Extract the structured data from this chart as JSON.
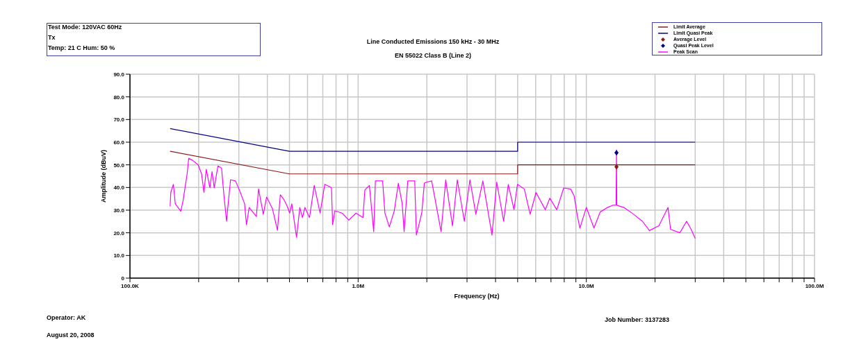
{
  "chart_data": {
    "type": "line",
    "title": "Line Conducted Emissions 150 kHz - 30 MHz",
    "subtitle": "EN 55022 Class B (Line 2)",
    "xlabel": "Frequency (Hz)",
    "ylabel": "Amplitude (dBuV)",
    "annotations": [
      "Test Mode: 120VAC 60Hz",
      "Tx",
      "Temp: 21 C Hum: 50 %",
      "Operator: AK",
      "August 20, 2008",
      "Job Number: 3137283"
    ],
    "log": "x",
    "grid": true,
    "legend": "top right",
    "xlim": [
      100000,
      100000000
    ],
    "ylim": [
      0,
      90
    ],
    "xticks": [
      {
        "value": 100000,
        "label": "100.0K"
      },
      {
        "value": 200000,
        "label": null
      },
      {
        "value": 300000,
        "label": null
      },
      {
        "value": 400000,
        "label": null
      },
      {
        "value": 500000,
        "label": null
      },
      {
        "value": 600000,
        "label": null
      },
      {
        "value": 700000,
        "label": null
      },
      {
        "value": 800000,
        "label": null
      },
      {
        "value": 900000,
        "label": null
      },
      {
        "value": 1000000,
        "label": "1.0M"
      },
      {
        "value": 2000000,
        "label": null
      },
      {
        "value": 3000000,
        "label": null
      },
      {
        "value": 4000000,
        "label": null
      },
      {
        "value": 5000000,
        "label": null
      },
      {
        "value": 6000000,
        "label": null
      },
      {
        "value": 7000000,
        "label": null
      },
      {
        "value": 8000000,
        "label": null
      },
      {
        "value": 9000000,
        "label": null
      },
      {
        "value": 10000000,
        "label": "10.0M"
      },
      {
        "value": 20000000,
        "label": null
      },
      {
        "value": 30000000,
        "label": null
      },
      {
        "value": 40000000,
        "label": null
      },
      {
        "value": 50000000,
        "label": null
      },
      {
        "value": 60000000,
        "label": null
      },
      {
        "value": 70000000,
        "label": null
      },
      {
        "value": 80000000,
        "label": null
      },
      {
        "value": 90000000,
        "label": null
      },
      {
        "value": 100000000,
        "label": "100.0M"
      }
    ],
    "yticks": [
      0,
      {
        "value": 10,
        "label": "10.0"
      },
      {
        "value": 20,
        "label": "20.0"
      },
      {
        "value": 30,
        "label": "30.0"
      },
      {
        "value": 40,
        "label": "40.0"
      },
      {
        "value": 50,
        "label": "50.0"
      },
      {
        "value": 60,
        "label": "60.0"
      },
      {
        "value": 70,
        "label": "70.0"
      },
      {
        "value": 80,
        "label": "80.0"
      },
      {
        "value": 90,
        "label": "90.0"
      }
    ],
    "series": [
      {
        "name": "Limit Average",
        "color": "#8b1a1a",
        "x": [
          150000,
          500000,
          5000000,
          5000000,
          30000000
        ],
        "values": [
          56,
          46,
          46,
          50,
          50
        ]
      },
      {
        "name": "Limit Quasi Peak",
        "color": "#000080",
        "x": [
          150000,
          500000,
          5000000,
          5000000,
          30000000
        ],
        "values": [
          66,
          56,
          56,
          60,
          60
        ]
      },
      {
        "name": "Average Level",
        "type": "scatter",
        "marker": "diamond",
        "color": "#8b1a1a",
        "x": [
          13560000
        ],
        "values": [
          49.1
        ]
      },
      {
        "name": "Quasi Peak Level",
        "type": "scatter",
        "marker": "diamond",
        "color": "#000080",
        "x": [
          13560000
        ],
        "values": [
          55.3
        ]
      },
      {
        "name": "Peak Scan",
        "color": "#ff00ff",
        "x": [
          150000,
          151000,
          155000,
          158000,
          167000,
          171000,
          178000,
          181000,
          188000,
          199000,
          206000,
          211000,
          216000,
          224000,
          229000,
          234000,
          243000,
          252000,
          258000,
          265000,
          270000,
          276000,
          290000,
          303000,
          318000,
          324000,
          333000,
          358000,
          366000,
          384000,
          397000,
          421000,
          443000,
          456000,
          472000,
          489000,
          501000,
          512000,
          537000,
          555000,
          570000,
          584000,
          612000,
          642000,
          681000,
          714000,
          748000,
          764000,
          773000,
          791000,
          851000,
          910000,
          978000,
          1050000,
          1070000,
          1120000,
          1170000,
          1190000,
          1280000,
          1310000,
          1370000,
          1440000,
          1500000,
          1560000,
          1590000,
          1650000,
          1770000,
          1800000,
          1900000,
          1950000,
          2000000,
          2100000,
          2310000,
          2420000,
          2590000,
          2720000,
          2920000,
          3090000,
          3280000,
          3520000,
          3860000,
          4050000,
          4340000,
          4550000,
          4820000,
          4990000,
          5350000,
          5670000,
          6020000,
          6610000,
          6920000,
          7420000,
          7960000,
          8540000,
          8840000,
          9150000,
          9370000,
          10000000,
          10800000,
          11500000,
          12400000,
          13100000,
          13500000,
          13560000,
          13600000,
          14600000,
          16100000,
          17600000,
          18900000,
          20800000,
          22800000,
          23400000,
          25700000,
          27500000,
          28800000,
          30000000
        ],
        "values": [
          31.7,
          37.8,
          41.4,
          32.8,
          29.5,
          34.3,
          46,
          52.9,
          52,
          50,
          46,
          37.8,
          48,
          39.9,
          47,
          39.9,
          49.5,
          48.5,
          36.8,
          25.1,
          33.8,
          43.4,
          42.9,
          38.4,
          32.8,
          23.6,
          31.2,
          27.2,
          39.4,
          28.2,
          35.8,
          30.7,
          21.1,
          36.8,
          34.8,
          31.7,
          28.7,
          32.8,
          18,
          31.2,
          26.7,
          31.2,
          26.7,
          40.9,
          28.7,
          41.4,
          40.4,
          39.9,
          23.6,
          29.7,
          28.7,
          25.6,
          28.7,
          26.7,
          38.9,
          40.9,
          20.5,
          42.9,
          42.9,
          28.7,
          22.6,
          29.7,
          41.9,
          32.8,
          20.5,
          42.9,
          42.9,
          19,
          28.7,
          41.9,
          42.4,
          42.9,
          20.5,
          43.4,
          23.1,
          43.4,
          25.1,
          43.4,
          28.2,
          42.9,
          19,
          42.4,
          25.1,
          41.4,
          30.2,
          41.4,
          39.3,
          28.2,
          37.8,
          30.2,
          35.3,
          30.2,
          39.8,
          39.3,
          36.3,
          27.1,
          22.1,
          31.2,
          22.1,
          29.2,
          31.2,
          32.2,
          32.2,
          56.6,
          32.2,
          31.2,
          28.2,
          25.1,
          21,
          23.1,
          31.2,
          21.5,
          20,
          25.1,
          21.5,
          17.5
        ]
      }
    ]
  }
}
